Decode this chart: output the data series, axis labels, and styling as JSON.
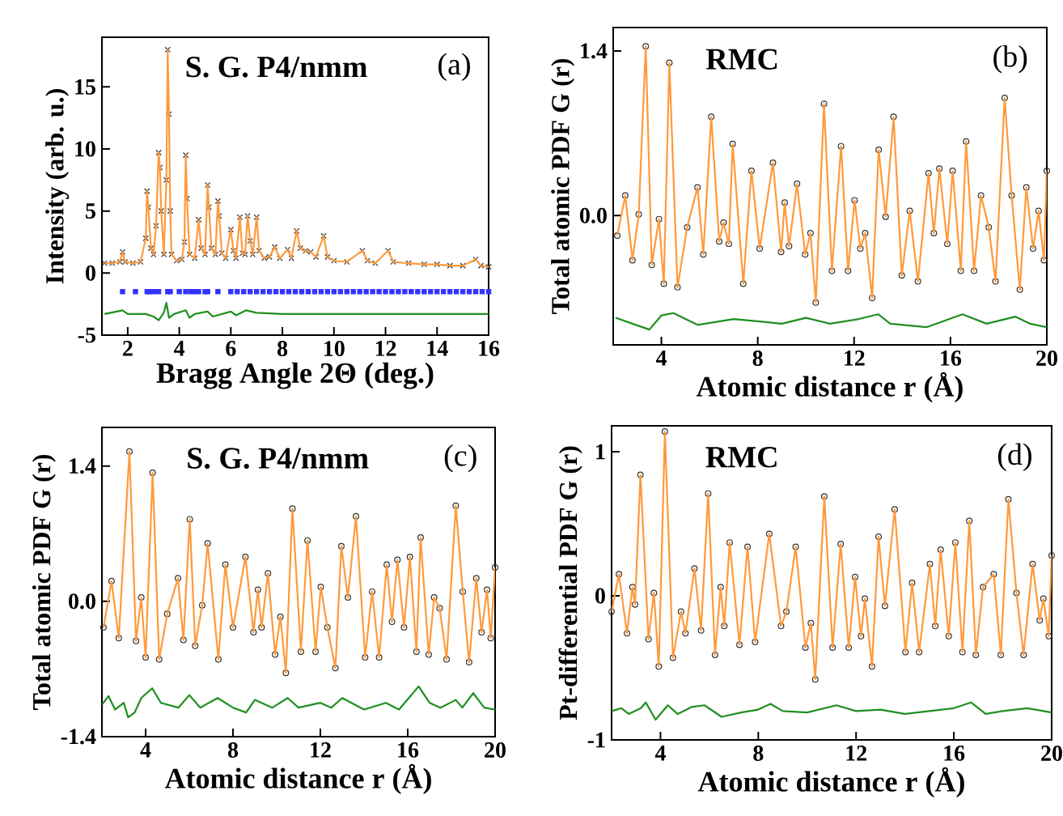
{
  "chart_data": [
    {
      "type": "scatter",
      "xlabel": "Bragg Angle 2Θ (deg.)",
      "ylabel": "Intensity (arb. u.)",
      "annotations": [
        "S. G. P4/nmm",
        "(a)"
      ],
      "xlim": [
        1,
        16
      ],
      "ylim": [
        -5,
        19
      ],
      "xticks": [
        2,
        4,
        6,
        8,
        10,
        12,
        14,
        16
      ],
      "yticks": [
        -5,
        0,
        5,
        10,
        15
      ],
      "x": [
        1.1,
        1.4,
        1.7,
        1.8,
        1.9,
        2.2,
        2.5,
        2.7,
        2.75,
        2.8,
        2.9,
        3.0,
        3.1,
        3.2,
        3.25,
        3.3,
        3.4,
        3.5,
        3.55,
        3.6,
        3.65,
        3.7,
        3.9,
        4.1,
        4.2,
        4.25,
        4.3,
        4.4,
        4.6,
        4.75,
        4.85,
        5.0,
        5.1,
        5.15,
        5.25,
        5.4,
        5.5,
        5.55,
        5.65,
        5.8,
        6.0,
        6.1,
        6.2,
        6.35,
        6.45,
        6.55,
        6.65,
        6.75,
        6.85,
        7.0,
        7.1,
        7.3,
        7.5,
        7.7,
        7.9,
        8.2,
        8.35,
        8.55,
        8.7,
        8.9,
        9.1,
        9.3,
        9.6,
        9.75,
        10.0,
        10.5,
        11.1,
        11.3,
        11.6,
        12.1,
        12.3,
        12.9,
        13.5,
        14.0,
        14.5,
        15.0,
        15.5,
        15.7,
        16.0
      ],
      "series": [
        {
          "marker": "cross",
          "color": "#333333",
          "values": [
            0.8,
            0.8,
            0.9,
            1.7,
            0.9,
            0.8,
            0.9,
            2.8,
            6.6,
            5.3,
            2.0,
            1.5,
            3.8,
            9.7,
            8.5,
            5.0,
            1.5,
            7.5,
            18.0,
            12.8,
            5.0,
            1.5,
            1.0,
            1.1,
            2.5,
            9.5,
            6.0,
            1.5,
            1.2,
            4.3,
            2.0,
            1.5,
            7.1,
            5.3,
            2.0,
            1.5,
            5.8,
            4.6,
            1.6,
            1.2,
            3.5,
            1.8,
            1.2,
            4.5,
            1.6,
            1.5,
            4.6,
            2.6,
            1.5,
            4.5,
            1.8,
            1.2,
            1.3,
            2.1,
            1.2,
            1.9,
            1.2,
            3.4,
            2.0,
            1.8,
            1.7,
            1.3,
            3.0,
            1.3,
            1.0,
            0.9,
            1.8,
            1.0,
            0.8,
            1.8,
            0.9,
            0.8,
            0.7,
            0.7,
            0.6,
            0.6,
            1.1,
            0.6,
            0.5
          ]
        },
        {
          "type": "line",
          "color": "#ff9a3c",
          "values": [
            0.8,
            0.8,
            0.9,
            1.7,
            0.9,
            0.8,
            0.9,
            2.8,
            6.6,
            5.3,
            2.0,
            1.5,
            3.8,
            9.7,
            8.5,
            5.0,
            1.5,
            7.5,
            18.0,
            12.8,
            5.0,
            1.5,
            1.0,
            1.1,
            2.5,
            9.5,
            6.0,
            1.5,
            1.2,
            4.3,
            2.0,
            1.5,
            7.1,
            5.3,
            2.0,
            1.5,
            5.8,
            4.6,
            1.6,
            1.2,
            3.5,
            1.8,
            1.2,
            4.5,
            1.6,
            1.5,
            4.6,
            2.6,
            1.5,
            4.5,
            1.8,
            1.2,
            1.3,
            2.1,
            1.2,
            1.9,
            1.2,
            3.4,
            2.0,
            1.8,
            1.7,
            1.3,
            3.0,
            1.3,
            1.0,
            0.9,
            1.8,
            1.0,
            0.8,
            1.8,
            0.9,
            0.8,
            0.7,
            0.7,
            0.6,
            0.6,
            1.1,
            0.6,
            0.5
          ]
        },
        {
          "marker": "square",
          "color": "#3333ff",
          "x": [
            1.8,
            2.3,
            2.75,
            2.85,
            3.0,
            3.2,
            3.55,
            3.65,
            4.0,
            4.25,
            4.45,
            4.6,
            4.75,
            5.0,
            5.1,
            5.5,
            6.0,
            6.25,
            6.5,
            6.75,
            7.0,
            7.25,
            7.5,
            7.75,
            8.0,
            8.25,
            8.5,
            8.75,
            9.0,
            9.25,
            9.5,
            9.75,
            10.0,
            10.25,
            10.5,
            10.75,
            11.0,
            11.25,
            11.5,
            11.75,
            12.0,
            12.25,
            12.5,
            12.75,
            13.0,
            13.25,
            13.5,
            13.75,
            14.0,
            14.25,
            14.5,
            14.75,
            15.0,
            15.25,
            15.5,
            15.75,
            16.0
          ],
          "values": [
            -1.5,
            -1.5,
            -1.5,
            -1.5,
            -1.5,
            -1.5,
            -1.5,
            -1.5,
            -1.5,
            -1.5,
            -1.5,
            -1.5,
            -1.5,
            -1.5,
            -1.5,
            -1.5,
            -1.5,
            -1.5,
            -1.5,
            -1.5,
            -1.5,
            -1.5,
            -1.5,
            -1.5,
            -1.5,
            -1.5,
            -1.5,
            -1.5,
            -1.5,
            -1.5,
            -1.5,
            -1.5,
            -1.5,
            -1.5,
            -1.5,
            -1.5,
            -1.5,
            -1.5,
            -1.5,
            -1.5,
            -1.5,
            -1.5,
            -1.5,
            -1.5,
            -1.5,
            -1.5,
            -1.5,
            -1.5,
            -1.5,
            -1.5,
            -1.5,
            -1.5,
            -1.5,
            -1.5,
            -1.5,
            -1.5,
            -1.5
          ]
        },
        {
          "type": "line",
          "color": "#1f8f1f",
          "x": [
            1.1,
            1.8,
            2.0,
            2.7,
            3.0,
            3.2,
            3.4,
            3.5,
            3.6,
            3.8,
            4.25,
            4.4,
            4.6,
            5.1,
            5.3,
            6.0,
            6.2,
            6.6,
            7.0,
            8.0,
            10.0,
            16.0
          ],
          "values": [
            -3.3,
            -3.0,
            -3.3,
            -3.3,
            -3.5,
            -3.8,
            -3.2,
            -2.4,
            -3.6,
            -3.3,
            -3.0,
            -3.6,
            -3.3,
            -3.1,
            -3.5,
            -3.1,
            -3.4,
            -3.0,
            -3.2,
            -3.3,
            -3.3,
            -3.3
          ]
        }
      ]
    },
    {
      "type": "scatter",
      "xlabel": "Atomic distance r (Å)",
      "ylabel": "Total atomic PDF G (r)",
      "annotations": [
        "RMC",
        "(b)"
      ],
      "xlim": [
        2,
        20
      ],
      "ylim": [
        -1.1,
        1.6
      ],
      "xticks": [
        4,
        8,
        12,
        16,
        20
      ],
      "yticks": [
        {
          "value": 0,
          "label": "0.0"
        },
        1.4
      ],
      "x": [
        2.17,
        2.5,
        2.8,
        3.06,
        3.35,
        3.6,
        3.9,
        4.1,
        4.33,
        4.67,
        5.07,
        5.5,
        5.74,
        6.07,
        6.4,
        6.58,
        6.8,
        6.96,
        7.4,
        7.74,
        8.08,
        8.63,
        8.97,
        9.12,
        9.3,
        9.63,
        9.97,
        10.19,
        10.41,
        10.75,
        11.08,
        11.46,
        11.75,
        12.02,
        12.26,
        12.46,
        12.75,
        13.02,
        13.31,
        13.64,
        13.98,
        14.31,
        14.65,
        15.09,
        15.31,
        15.54,
        15.87,
        16.09,
        16.43,
        16.65,
        16.98,
        17.27,
        17.59,
        17.87,
        18.25,
        18.54,
        18.88,
        19.15,
        19.43,
        19.66,
        19.88,
        20.0
      ],
      "series": [
        {
          "type": "scatter",
          "marker": "circle",
          "color": "#333333",
          "values": [
            -0.17,
            0.17,
            -0.38,
            0.01,
            1.44,
            -0.42,
            -0.03,
            -0.58,
            1.3,
            -0.61,
            -0.1,
            0.24,
            -0.33,
            0.84,
            -0.22,
            -0.06,
            -0.24,
            0.61,
            -0.58,
            0.38,
            -0.28,
            0.45,
            -0.31,
            0.11,
            -0.26,
            0.27,
            -0.33,
            -0.15,
            -0.74,
            0.95,
            -0.47,
            0.59,
            -0.47,
            0.13,
            -0.28,
            -0.15,
            -0.7,
            0.56,
            -0.01,
            0.84,
            -0.51,
            0.04,
            -0.56,
            0.36,
            -0.15,
            0.4,
            -0.24,
            0.38,
            -0.47,
            0.63,
            -0.47,
            0.17,
            -0.1,
            -0.56,
            1.0,
            0.17,
            -0.63,
            0.24,
            -0.28,
            0.04,
            -0.38,
            0.38
          ]
        },
        {
          "type": "line",
          "color": "#ff9a3c",
          "values": [
            -0.17,
            0.17,
            -0.38,
            0.01,
            1.44,
            -0.42,
            -0.03,
            -0.58,
            1.3,
            -0.61,
            -0.1,
            0.24,
            -0.33,
            0.84,
            -0.22,
            -0.06,
            -0.24,
            0.61,
            -0.58,
            0.38,
            -0.28,
            0.45,
            -0.31,
            0.11,
            -0.26,
            0.27,
            -0.33,
            -0.15,
            -0.74,
            0.95,
            -0.47,
            0.59,
            -0.47,
            0.13,
            -0.28,
            -0.15,
            -0.7,
            0.56,
            -0.01,
            0.84,
            -0.51,
            0.04,
            -0.56,
            0.36,
            -0.15,
            0.4,
            -0.24,
            0.38,
            -0.47,
            0.63,
            -0.47,
            0.17,
            -0.1,
            -0.56,
            1.0,
            0.17,
            -0.63,
            0.24,
            -0.28,
            0.04,
            -0.38,
            0.38
          ]
        },
        {
          "type": "line",
          "color": "#1f8f1f",
          "x": [
            2.1,
            2.8,
            3.5,
            4.0,
            4.5,
            5.5,
            7.0,
            8.0,
            9.0,
            10.0,
            11.0,
            12.2,
            13.0,
            13.5,
            15.0,
            16.5,
            17.5,
            18.7,
            19.3,
            20.0
          ],
          "values": [
            -0.87,
            -0.92,
            -0.97,
            -0.85,
            -0.83,
            -0.93,
            -0.88,
            -0.9,
            -0.92,
            -0.87,
            -0.92,
            -0.88,
            -0.84,
            -0.92,
            -0.95,
            -0.84,
            -0.92,
            -0.86,
            -0.92,
            -0.95
          ]
        }
      ]
    },
    {
      "type": "scatter",
      "xlabel": "Atomic distance r (Å)",
      "ylabel": "Total atomic PDF G (r)",
      "annotations": [
        "S. G. P4/nmm",
        "(c)"
      ],
      "xlim": [
        2,
        20
      ],
      "ylim": [
        -1.4,
        1.8
      ],
      "xticks": [
        4,
        8,
        12,
        16,
        20
      ],
      "yticks": [
        -1.4,
        {
          "value": 0,
          "label": "0.0"
        },
        1.4
      ],
      "x": [
        2.07,
        2.44,
        2.77,
        3.26,
        3.56,
        3.8,
        4.0,
        4.32,
        4.62,
        4.99,
        5.48,
        5.73,
        6.02,
        6.27,
        6.59,
        6.84,
        7.33,
        7.65,
        8.0,
        8.57,
        8.94,
        9.14,
        9.31,
        9.6,
        9.93,
        10.17,
        10.42,
        10.72,
        11.11,
        11.41,
        11.78,
        12.02,
        12.32,
        12.69,
        12.96,
        13.26,
        13.63,
        14.05,
        14.37,
        14.69,
        15.04,
        15.28,
        15.53,
        15.83,
        16.1,
        16.4,
        16.59,
        16.96,
        17.21,
        17.46,
        17.78,
        18.2,
        18.52,
        18.81,
        19.14,
        19.38,
        19.63,
        19.8,
        20.0
      ],
      "series": [
        {
          "type": "scatter",
          "marker": "circle",
          "color": "#333333",
          "values": [
            -0.27,
            0.21,
            -0.38,
            1.55,
            -0.41,
            0.04,
            -0.58,
            1.33,
            -0.6,
            -0.13,
            0.24,
            -0.4,
            0.85,
            -0.46,
            -0.04,
            0.6,
            -0.6,
            0.38,
            -0.27,
            0.46,
            -0.32,
            0.12,
            -0.27,
            0.29,
            -0.55,
            -0.16,
            -0.74,
            0.96,
            -0.52,
            0.63,
            -0.52,
            0.15,
            -0.27,
            -0.69,
            0.57,
            0.04,
            0.88,
            -0.58,
            0.1,
            -0.58,
            0.38,
            -0.21,
            0.43,
            -0.27,
            0.46,
            -0.52,
            0.66,
            -0.55,
            0.04,
            -0.07,
            -0.6,
            0.99,
            0.1,
            -0.63,
            0.24,
            -0.32,
            0.12,
            -0.38,
            0.35
          ]
        },
        {
          "type": "line",
          "color": "#ff9a3c",
          "values": [
            -0.27,
            0.21,
            -0.38,
            1.55,
            -0.41,
            0.04,
            -0.58,
            1.33,
            -0.6,
            -0.13,
            0.24,
            -0.4,
            0.85,
            -0.46,
            -0.04,
            0.6,
            -0.6,
            0.38,
            -0.27,
            0.46,
            -0.32,
            0.12,
            -0.27,
            0.29,
            -0.55,
            -0.16,
            -0.74,
            0.96,
            -0.52,
            0.63,
            -0.52,
            0.15,
            -0.27,
            -0.69,
            0.57,
            0.04,
            0.88,
            -0.58,
            0.1,
            -0.58,
            0.38,
            -0.21,
            0.43,
            -0.27,
            0.46,
            -0.52,
            0.66,
            -0.55,
            0.04,
            -0.07,
            -0.6,
            0.99,
            0.1,
            -0.63,
            0.24,
            -0.32,
            0.12,
            -0.38,
            0.35
          ]
        },
        {
          "type": "line",
          "color": "#1f8f1f",
          "x": [
            2.0,
            2.3,
            2.6,
            3.0,
            3.2,
            3.5,
            3.8,
            4.3,
            4.7,
            5.5,
            6.0,
            6.5,
            7.3,
            8.0,
            8.6,
            9.0,
            9.8,
            10.5,
            11.0,
            12.0,
            12.5,
            13.0,
            14.0,
            15.0,
            15.6,
            16.5,
            17.0,
            17.5,
            18.2,
            18.5,
            19.0,
            19.5,
            20.0
          ],
          "values": [
            -1.07,
            -0.98,
            -1.12,
            -1.05,
            -1.2,
            -1.15,
            -1.0,
            -0.9,
            -1.05,
            -1.1,
            -0.97,
            -1.1,
            -1.0,
            -1.1,
            -1.15,
            -1.02,
            -1.1,
            -1.0,
            -1.1,
            -1.05,
            -1.1,
            -1.0,
            -1.12,
            -1.05,
            -1.12,
            -0.88,
            -1.05,
            -1.1,
            -1.02,
            -1.1,
            -0.95,
            -1.1,
            -1.12
          ]
        }
      ]
    },
    {
      "type": "scatter",
      "xlabel": "Atomic distance r (Å)",
      "ylabel": "Pt-differential PDF G (r)",
      "annotations": [
        "RMC",
        "(d)"
      ],
      "xlim": [
        2,
        20
      ],
      "ylim": [
        -1,
        1.18
      ],
      "xticks": [
        4,
        8,
        12,
        16,
        20
      ],
      "yticks": [
        -1,
        0,
        1
      ],
      "x": [
        2.0,
        2.3,
        2.63,
        2.85,
        2.96,
        3.18,
        3.51,
        3.73,
        3.93,
        4.18,
        4.51,
        4.84,
        5.02,
        5.39,
        5.66,
        5.95,
        6.23,
        6.46,
        6.61,
        6.83,
        7.23,
        7.56,
        7.87,
        8.45,
        8.93,
        9.15,
        9.53,
        9.93,
        10.15,
        10.33,
        10.7,
        11.04,
        11.37,
        11.7,
        11.96,
        12.2,
        12.36,
        12.65,
        12.92,
        13.18,
        13.58,
        14.02,
        14.29,
        14.58,
        15.02,
        15.24,
        15.46,
        15.79,
        16.06,
        16.35,
        16.63,
        16.9,
        17.19,
        17.63,
        17.92,
        18.23,
        18.56,
        18.85,
        19.22,
        19.51,
        19.66,
        19.88,
        20.0
      ],
      "series": [
        {
          "type": "scatter",
          "marker": "circle",
          "color": "#333333",
          "values": [
            -0.11,
            0.15,
            -0.26,
            0.06,
            -0.06,
            0.84,
            -0.3,
            0.02,
            -0.49,
            1.14,
            -0.43,
            -0.11,
            -0.26,
            0.19,
            -0.24,
            0.71,
            -0.41,
            0.06,
            -0.21,
            0.37,
            -0.34,
            0.34,
            -0.32,
            0.43,
            -0.21,
            -0.11,
            0.34,
            -0.36,
            -0.19,
            -0.58,
            0.69,
            -0.36,
            0.36,
            -0.36,
            0.13,
            -0.28,
            -0.02,
            -0.49,
            0.41,
            -0.07,
            0.6,
            -0.39,
            0.09,
            -0.39,
            0.22,
            -0.21,
            0.32,
            -0.28,
            0.37,
            -0.39,
            0.52,
            -0.41,
            0.06,
            0.15,
            -0.41,
            0.67,
            0.02,
            -0.41,
            0.22,
            -0.17,
            -0.02,
            -0.28,
            0.28
          ]
        },
        {
          "type": "line",
          "color": "#ff9a3c",
          "values": [
            -0.11,
            0.15,
            -0.26,
            0.06,
            -0.06,
            0.84,
            -0.3,
            0.02,
            -0.49,
            1.14,
            -0.43,
            -0.11,
            -0.26,
            0.19,
            -0.24,
            0.71,
            -0.41,
            0.06,
            -0.21,
            0.37,
            -0.34,
            0.34,
            -0.32,
            0.43,
            -0.21,
            -0.11,
            0.34,
            -0.36,
            -0.19,
            -0.58,
            0.69,
            -0.36,
            0.36,
            -0.36,
            0.13,
            -0.28,
            -0.02,
            -0.49,
            0.41,
            -0.07,
            0.6,
            -0.39,
            0.09,
            -0.39,
            0.22,
            -0.21,
            0.32,
            -0.28,
            0.37,
            -0.39,
            0.52,
            -0.41,
            0.06,
            0.15,
            -0.41,
            0.67,
            0.02,
            -0.41,
            0.22,
            -0.17,
            -0.02,
            -0.28,
            0.28
          ]
        },
        {
          "type": "line",
          "color": "#1f8f1f",
          "x": [
            2.0,
            2.4,
            2.7,
            3.2,
            3.4,
            3.8,
            4.3,
            4.7,
            5.3,
            5.8,
            6.5,
            7.3,
            8.0,
            8.5,
            9.0,
            10.0,
            11.2,
            12.0,
            13.0,
            14.0,
            15.0,
            16.0,
            16.7,
            17.3,
            18.0,
            19.0,
            20.0
          ],
          "values": [
            -0.8,
            -0.78,
            -0.82,
            -0.78,
            -0.74,
            -0.86,
            -0.76,
            -0.82,
            -0.77,
            -0.76,
            -0.84,
            -0.81,
            -0.79,
            -0.75,
            -0.8,
            -0.81,
            -0.76,
            -0.8,
            -0.79,
            -0.82,
            -0.8,
            -0.78,
            -0.74,
            -0.82,
            -0.8,
            -0.78,
            -0.81
          ]
        }
      ]
    }
  ]
}
